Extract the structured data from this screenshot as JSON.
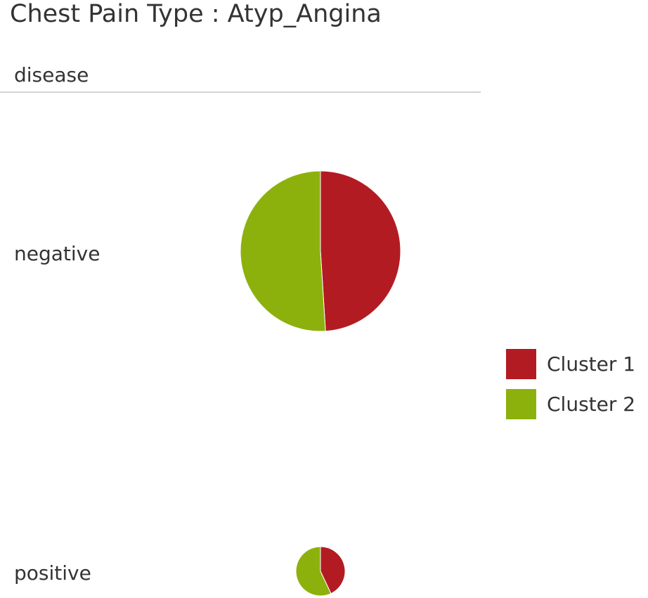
{
  "chart_data": {
    "type": "pie",
    "title": "Chest Pain Type : Atyp_Angina",
    "row_header": "disease",
    "rows": [
      {
        "label": "negative",
        "values": [
          0.49,
          0.51
        ]
      },
      {
        "label": "positive",
        "values": [
          0.43,
          0.57
        ]
      }
    ],
    "series": [
      {
        "name": "Cluster 1",
        "color": "#b31b22"
      },
      {
        "name": "Cluster 2",
        "color": "#8db10c"
      }
    ],
    "legend": "right"
  }
}
